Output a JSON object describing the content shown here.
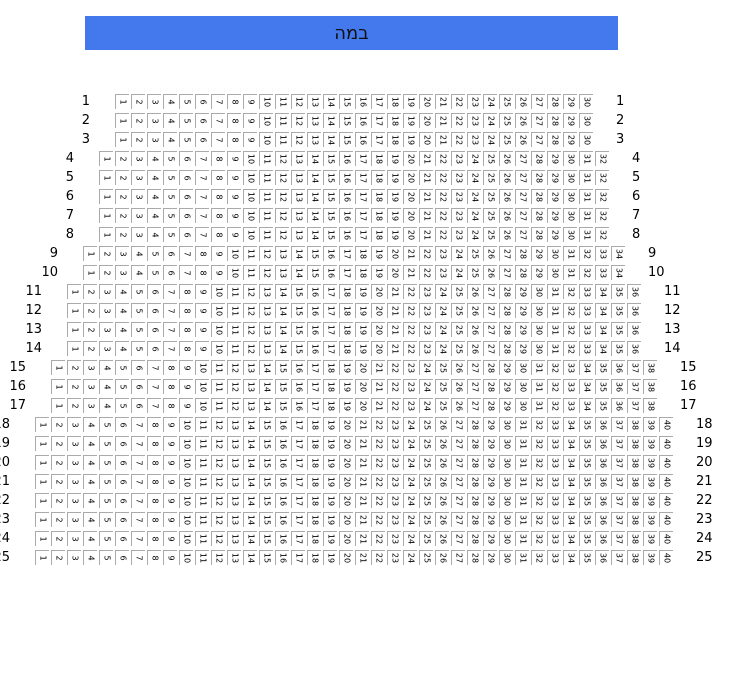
{
  "stage": {
    "label": "במה",
    "color": "#4479ee"
  },
  "rows": [
    {
      "label": "1",
      "seats": 30
    },
    {
      "label": "2",
      "seats": 30
    },
    {
      "label": "3",
      "seats": 30
    },
    {
      "label": "4",
      "seats": 32
    },
    {
      "label": "5",
      "seats": 32
    },
    {
      "label": "6",
      "seats": 32
    },
    {
      "label": "7",
      "seats": 32
    },
    {
      "label": "8",
      "seats": 32
    },
    {
      "label": "9",
      "seats": 34
    },
    {
      "label": "10",
      "seats": 34
    },
    {
      "label": "11",
      "seats": 36
    },
    {
      "label": "12",
      "seats": 36
    },
    {
      "label": "13",
      "seats": 36
    },
    {
      "label": "14",
      "seats": 36
    },
    {
      "label": "15",
      "seats": 38
    },
    {
      "label": "16",
      "seats": 38
    },
    {
      "label": "17",
      "seats": 38
    },
    {
      "label": "18",
      "seats": 40
    },
    {
      "label": "19",
      "seats": 40
    },
    {
      "label": "20",
      "seats": 40
    },
    {
      "label": "21",
      "seats": 40
    },
    {
      "label": "22",
      "seats": 40
    },
    {
      "label": "23",
      "seats": 40
    },
    {
      "label": "24",
      "seats": 40
    },
    {
      "label": "25",
      "seats": 40
    }
  ]
}
